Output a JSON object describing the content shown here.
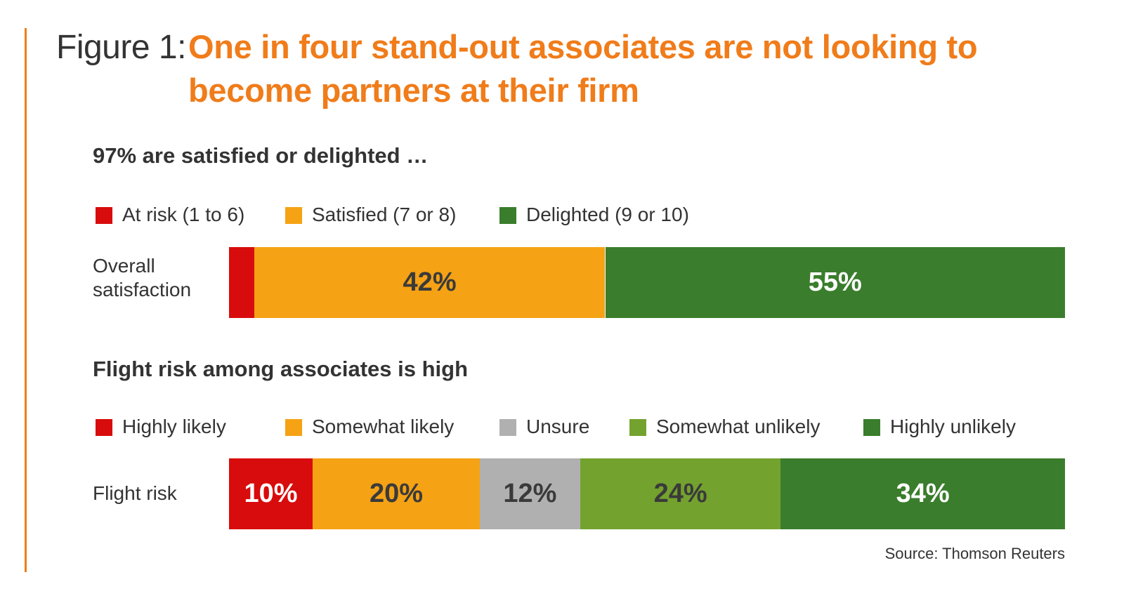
{
  "figure_label": "Figure 1:",
  "title": "One in four stand-out associates are not looking to become partners at their firm",
  "source": "Source: Thomson Reuters",
  "colors": {
    "accent": "#f07c1a",
    "red": "#d80c0c",
    "orange": "#f5a214",
    "gray": "#b0b0b0",
    "light_green": "#74a22e",
    "dark_green": "#3a7d2c"
  },
  "chart_data": [
    {
      "type": "bar",
      "orientation": "horizontal-stacked",
      "subtitle": "97% are satisfied or delighted …",
      "categories": [
        "Overall satisfaction"
      ],
      "series": [
        {
          "name": "At risk (1 to 6)",
          "values": [
            3
          ],
          "color": "#d80c0c",
          "label": ""
        },
        {
          "name": "Satisfied (7 or 8)",
          "values": [
            42
          ],
          "color": "#f5a214",
          "label": "42%"
        },
        {
          "name": "Delighted (9 or 10)",
          "values": [
            55
          ],
          "color": "#3a7d2c",
          "label": "55%"
        }
      ],
      "legend_position": "top-left"
    },
    {
      "type": "bar",
      "orientation": "horizontal-stacked",
      "subtitle": "Flight risk among associates is high",
      "categories": [
        "Flight risk"
      ],
      "series": [
        {
          "name": "Highly likely",
          "values": [
            10
          ],
          "color": "#d80c0c",
          "label": "10%"
        },
        {
          "name": "Somewhat likely",
          "values": [
            20
          ],
          "color": "#f5a214",
          "label": "20%"
        },
        {
          "name": "Unsure",
          "values": [
            12
          ],
          "color": "#b0b0b0",
          "label": "12%"
        },
        {
          "name": "Somewhat unlikely",
          "values": [
            24
          ],
          "color": "#74a22e",
          "label": "24%"
        },
        {
          "name": "Highly unlikely",
          "values": [
            34
          ],
          "color": "#3a7d2c",
          "label": "34%"
        }
      ],
      "legend_position": "top-left"
    }
  ]
}
